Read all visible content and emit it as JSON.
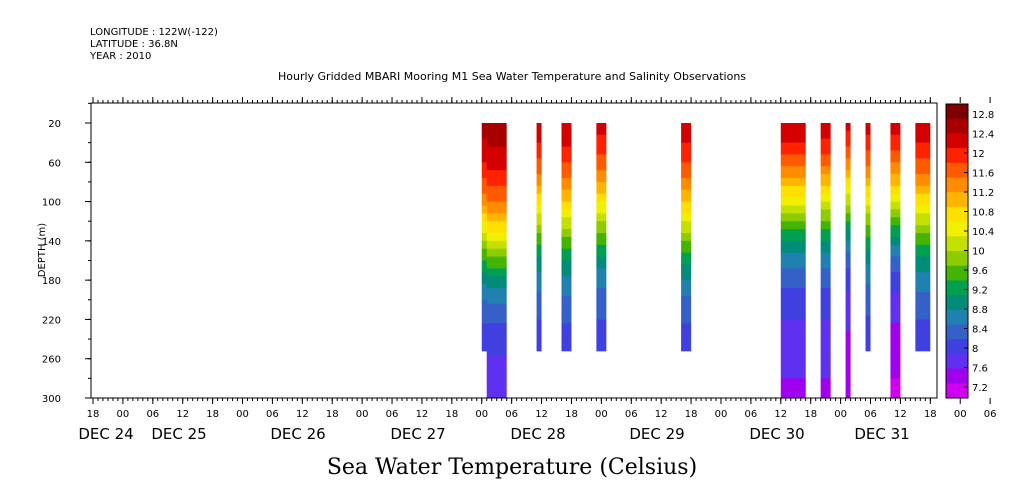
{
  "header": {
    "longitude": "LONGITUDE : 122W(-122)",
    "latitude": "LATITUDE : 36.8N",
    "year": "YEAR : 2010"
  },
  "chart_data": {
    "type": "heatmap",
    "title": "Hourly Gridded MBARI Mooring M1 Sea Water Temperature and Salinity Observations",
    "xlabel": "Sea Water Temperature (Celsius)",
    "ylabel": "DEPTH (m)",
    "ylim": [
      300,
      0
    ],
    "y_ticks": [
      20,
      60,
      100,
      140,
      180,
      220,
      260,
      300
    ],
    "x_hour_ticks": [
      "18",
      "00",
      "06",
      "12",
      "18",
      "00",
      "06",
      "12",
      "18",
      "00",
      "06",
      "12",
      "18",
      "00",
      "06",
      "12",
      "18",
      "00",
      "06",
      "12",
      "18",
      "00",
      "06",
      "12",
      "18",
      "00",
      "06",
      "12",
      "18",
      "00",
      "06",
      "12",
      "18"
    ],
    "x_day_labels": [
      "DEC 24",
      "DEC 25",
      "DEC 26",
      "DEC 27",
      "DEC 28",
      "DEC 29",
      "DEC 30",
      "DEC 31"
    ],
    "colorbar": {
      "levels": [
        12.8,
        12.4,
        12,
        11.6,
        11.2,
        10.8,
        10.4,
        10,
        9.6,
        9.2,
        8.8,
        8.4,
        8,
        7.6,
        7.2
      ],
      "colors": [
        "#7f0000",
        "#a80000",
        "#d40000",
        "#ff2200",
        "#ff5a00",
        "#ff8c00",
        "#ffb400",
        "#ffe000",
        "#f0f000",
        "#c4e000",
        "#8ccc00",
        "#44b400",
        "#00a050",
        "#008c78",
        "#2080b0",
        "#3460c8",
        "#4040e0",
        "#6030f0",
        "#a000f0",
        "#d000f0"
      ],
      "min": 7.2,
      "max": 13.0
    },
    "time_axis": "hours since DEC 24 00",
    "columns": [
      {
        "start": 72.0,
        "end": 75.0,
        "depth_max": 250,
        "surface": 12.7,
        "thermo_depth": 130,
        "bottom": 8.0
      },
      {
        "start": 73.0,
        "end": 77.0,
        "depth_max": 300,
        "surface": 12.7,
        "thermo_depth": 140,
        "bottom": 7.8
      },
      {
        "start": 83.0,
        "end": 84.0,
        "depth_max": 250,
        "surface": 12.6,
        "thermo_depth": 110,
        "bottom": 8.1
      },
      {
        "start": 88.0,
        "end": 90.0,
        "depth_max": 250,
        "surface": 12.6,
        "thermo_depth": 115,
        "bottom": 8.1
      },
      {
        "start": 95.0,
        "end": 97.0,
        "depth_max": 250,
        "surface": 12.5,
        "thermo_depth": 110,
        "bottom": 8.1
      },
      {
        "start": 112.0,
        "end": 114.0,
        "depth_max": 250,
        "surface": 12.5,
        "thermo_depth": 120,
        "bottom": 8.1
      },
      {
        "start": 132.0,
        "end": 137.0,
        "depth_max": 300,
        "surface": 12.8,
        "thermo_depth": 100,
        "bottom": 7.7
      },
      {
        "start": 140.0,
        "end": 142.0,
        "depth_max": 300,
        "surface": 12.7,
        "thermo_depth": 100,
        "bottom": 7.7
      },
      {
        "start": 145.0,
        "end": 146.0,
        "depth_max": 300,
        "surface": 12.7,
        "thermo_depth": 95,
        "bottom": 7.5
      },
      {
        "start": 149.0,
        "end": 150.0,
        "depth_max": 250,
        "surface": 12.6,
        "thermo_depth": 100,
        "bottom": 8.1
      },
      {
        "start": 154.0,
        "end": 156.0,
        "depth_max": 300,
        "surface": 12.6,
        "thermo_depth": 105,
        "bottom": 7.4
      },
      {
        "start": 159.0,
        "end": 162.0,
        "depth_max": 250,
        "surface": 12.6,
        "thermo_depth": 110,
        "bottom": 8.1
      }
    ]
  }
}
